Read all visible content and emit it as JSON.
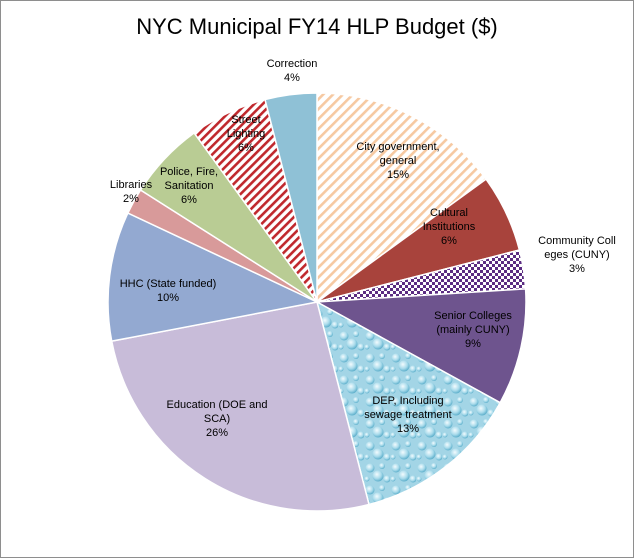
{
  "chart_data": {
    "type": "pie",
    "title": "NYC Municipal FY14 HLP Budget ($)",
    "slices": [
      {
        "label": [
          "City government,",
          "general"
        ],
        "pct": "15%",
        "value": 15,
        "color": "#f4b183",
        "fill": "hatch-orange"
      },
      {
        "label": [
          "Cultural",
          "Institutions"
        ],
        "pct": "6%",
        "value": 6,
        "color": "#a8433c",
        "fill": "solid"
      },
      {
        "label": [
          "Community  Coll",
          "eges (CUNY)"
        ],
        "pct": "3%",
        "value": 3,
        "color": "#5b2c82",
        "fill": "checker"
      },
      {
        "label": [
          "Senior Colleges",
          "(mainly CUNY)"
        ],
        "pct": "9%",
        "value": 9,
        "color": "#6e548e",
        "fill": "solid"
      },
      {
        "label": [
          "DEP, Including",
          "sewage treatment"
        ],
        "pct": "13%",
        "value": 13,
        "color": "#a7d7e8",
        "fill": "water"
      },
      {
        "label": [
          "Education (DOE and",
          "SCA)"
        ],
        "pct": "26%",
        "value": 26,
        "color": "#c8bcd9",
        "fill": "solid"
      },
      {
        "label": [
          "HHC (State funded)"
        ],
        "pct": "10%",
        "value": 10,
        "color": "#93a9d1",
        "fill": "solid"
      },
      {
        "label": [
          "Libraries"
        ],
        "pct": "2%",
        "value": 2,
        "color": "#d89a9a",
        "fill": "solid"
      },
      {
        "label": [
          "Police, Fire,",
          "Sanitation"
        ],
        "pct": "6%",
        "value": 6,
        "color": "#b9cc94",
        "fill": "solid"
      },
      {
        "label": [
          "Street",
          "Lighting"
        ],
        "pct": "6%",
        "value": 6,
        "color": "#c0282d",
        "fill": "hatch-red"
      },
      {
        "label": [
          "Correction"
        ],
        "pct": "4%",
        "value": 4,
        "color": "#8fc1d6",
        "fill": "solid"
      }
    ]
  }
}
